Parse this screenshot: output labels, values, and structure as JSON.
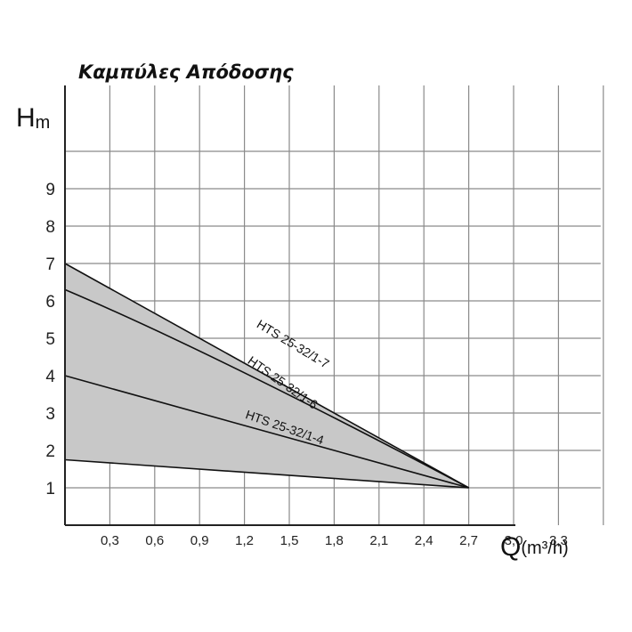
{
  "chart_data": {
    "type": "line",
    "title": "Καμπύλες Απόδοσης",
    "ylabel_main": "H",
    "ylabel_unit": "m",
    "xlabel_main": "Q",
    "xlabel_unit": "(m³/h)",
    "x_ticks": [
      "0,3",
      "0,6",
      "0,9",
      "1,2",
      "1,5",
      "1,8",
      "2,1",
      "2,4",
      "2,7",
      "3,0",
      "3,3"
    ],
    "y_ticks": [
      "1",
      "2",
      "3",
      "4",
      "5",
      "6",
      "7",
      "8",
      "9"
    ],
    "xlim": [
      0,
      3.6
    ],
    "ylim": [
      0,
      11
    ],
    "grid": true,
    "shaded_region": true,
    "series": [
      {
        "name": "HTS 25-32/1-7",
        "x": [
          0,
          2.7
        ],
        "y": [
          7.0,
          1.0
        ]
      },
      {
        "name": "HTS 25-32/1-6",
        "x": [
          0,
          1.0,
          2.7
        ],
        "y": [
          6.3,
          4.6,
          1.0
        ]
      },
      {
        "name": "HTS 25-32/1-4",
        "x": [
          0,
          2.7
        ],
        "y": [
          4.0,
          1.0
        ]
      },
      {
        "name": "",
        "x": [
          0,
          2.7
        ],
        "y": [
          1.75,
          1.0
        ]
      }
    ],
    "colors": {
      "fill": "#c8c8c8",
      "grid": "#8a8a8a",
      "line": "#111111"
    }
  }
}
